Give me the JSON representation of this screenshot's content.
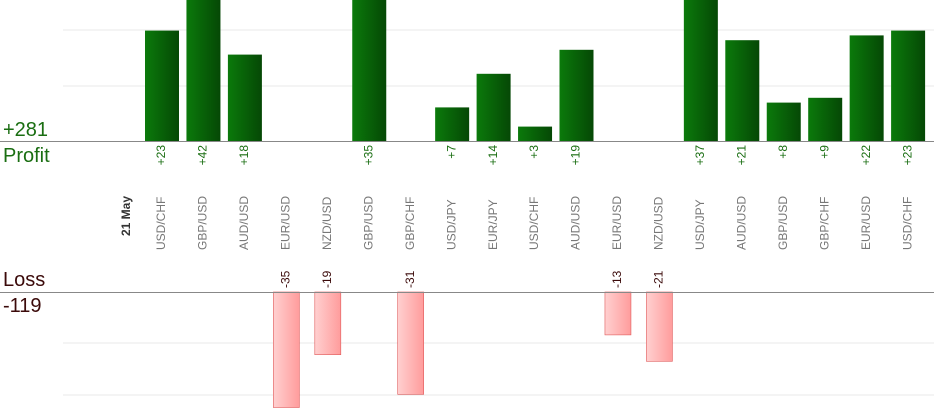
{
  "summary": {
    "profit_total": "+281",
    "profit_label": "Profit",
    "loss_label": "Loss",
    "loss_total": "-119"
  },
  "colors": {
    "profit_bar_light": "#0b7a0b",
    "profit_bar_dark": "#054805",
    "profit_text": "#1a6e12",
    "loss_bar_light": "#ffd0d0",
    "loss_bar_dark": "#ff9c9c",
    "loss_bar_border": "#e05a5a",
    "loss_text": "#3b0a0a",
    "pair_text": "#777777",
    "date_text": "#333333",
    "axis": "#888888",
    "grid": "#e8e8e8"
  },
  "chart_data": {
    "type": "bar",
    "date_label": "21 May",
    "categories": [
      "USD/CHF",
      "GBP/USD",
      "AUD/USD",
      "EUR/USD",
      "NZD/USD",
      "GBP/USD",
      "GBP/CHF",
      "USD/JPY",
      "EUR/JPY",
      "USD/CHF",
      "AUD/USD",
      "EUR/USD",
      "NZD/USD",
      "USD/JPY",
      "AUD/USD",
      "GBP/USD",
      "GBP/CHF",
      "EUR/USD",
      "USD/CHF"
    ],
    "values": [
      23,
      42,
      18,
      -35,
      -19,
      35,
      -31,
      7,
      14,
      3,
      19,
      -13,
      -21,
      37,
      21,
      8,
      9,
      22,
      23
    ],
    "value_labels": [
      "+23",
      "+42",
      "+18",
      "-35",
      "-19",
      "+35",
      "-31",
      "+7",
      "+14",
      "+3",
      "+19",
      "-13",
      "-21",
      "+37",
      "+21",
      "+8",
      "+9",
      "+22",
      "+23"
    ],
    "profit_axis_ylim": [
      0,
      25
    ],
    "loss_axis_ylim": [
      -35,
      0
    ],
    "grid": true
  }
}
